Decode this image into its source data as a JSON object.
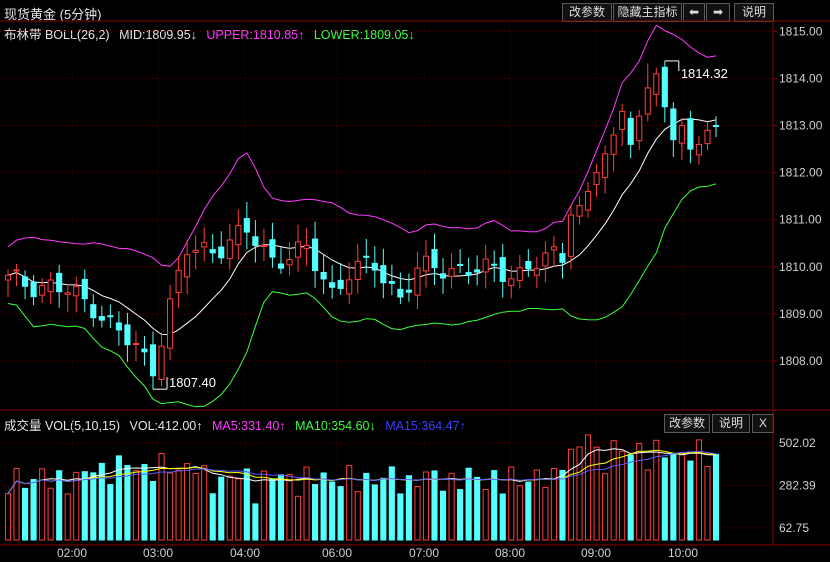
{
  "header": {
    "title": "现货黄金 (5分钟)",
    "btn_params": "改参数",
    "btn_hide": "隐藏主指标",
    "btn_left": "⬅",
    "btn_right": "➡",
    "btn_help": "说明"
  },
  "indicator": {
    "name": "布林带 BOLL(26,2)",
    "mid": "MID:1809.95↓",
    "upper": "UPPER:1810.85↑",
    "lower": "LOWER:1809.05↓"
  },
  "volume_panel": {
    "name": "成交量 VOL(5,10,15)",
    "vol": "VOL:412.00↑",
    "ma5": "MA5:331.40↑",
    "ma10": "MA10:354.60↓",
    "ma15": "MA15:364.47↑",
    "btn_params": "改参数",
    "btn_help": "说明",
    "btn_close": "X"
  },
  "colors": {
    "up": "#ff3c3c",
    "down": "#54ffff",
    "upper_band": "#ff3cff",
    "lower_band": "#3cff3c",
    "mid_band": "#ffffff",
    "ma5": "#ffffff",
    "ma10": "#ffff00",
    "ma15": "#ff00ff",
    "grid": "#5a0000"
  },
  "chart_data": {
    "type": "candlestick",
    "price_ticks": [
      "1815.00",
      "1814.00",
      "1813.00",
      "1812.00",
      "1811.00",
      "1810.00",
      "1809.00",
      "1808.00"
    ],
    "price_range": [
      1807.0,
      1815.2
    ],
    "volume_ticks": [
      "502.02",
      "282.39",
      "62.75"
    ],
    "volume_range": [
      0,
      560
    ],
    "time_labels": [
      "02:00",
      "03:00",
      "04:00",
      "06:00",
      "07:00",
      "08:00",
      "09:00",
      "10:00"
    ],
    "annotations": {
      "high": "1814.32",
      "low": "1807.40"
    },
    "bars": 84
  }
}
